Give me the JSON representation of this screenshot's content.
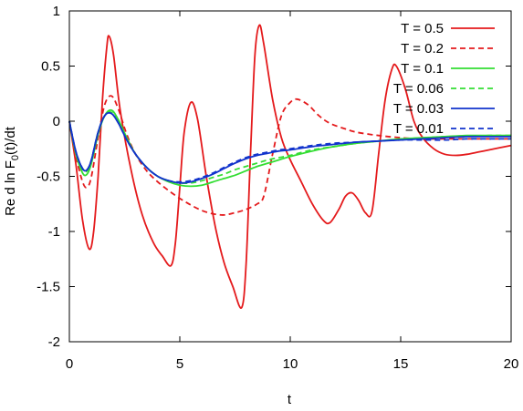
{
  "chart_data": {
    "type": "line",
    "xlabel": "t",
    "ylabel_main": "Re d ln F",
    "ylabel_sub": "0",
    "ylabel_tail": "(t)/dt",
    "xlim": [
      0,
      20
    ],
    "ylim": [
      -2,
      1
    ],
    "x_ticks": [
      0,
      5,
      10,
      15,
      20
    ],
    "x_tick_labels": [
      "0",
      "5",
      "10",
      "15",
      "20"
    ],
    "y_ticks": [
      1,
      0.5,
      0,
      -0.5,
      -1,
      -1.5,
      -2
    ],
    "y_tick_labels": [
      "1",
      "0.5",
      "0",
      "-0.5",
      "-1",
      "-1.5",
      "-2"
    ],
    "grid": false,
    "legend_position": "top-right",
    "series": [
      {
        "name": "T = 0.5",
        "color": "#e41a1c",
        "dash": "solid",
        "points": [
          [
            0,
            0
          ],
          [
            0.3,
            -0.4
          ],
          [
            0.6,
            -0.9
          ],
          [
            0.9,
            -1.16
          ],
          [
            1.1,
            -1.0
          ],
          [
            1.3,
            -0.5
          ],
          [
            1.5,
            0.2
          ],
          [
            1.7,
            0.68
          ],
          [
            1.8,
            0.77
          ],
          [
            2.0,
            0.6
          ],
          [
            2.3,
            0.1
          ],
          [
            2.8,
            -0.45
          ],
          [
            3.3,
            -0.85
          ],
          [
            3.8,
            -1.1
          ],
          [
            4.2,
            -1.22
          ],
          [
            4.6,
            -1.31
          ],
          [
            4.8,
            -1.1
          ],
          [
            5.0,
            -0.6
          ],
          [
            5.2,
            -0.1
          ],
          [
            5.5,
            0.17
          ],
          [
            5.8,
            0.02
          ],
          [
            6.2,
            -0.5
          ],
          [
            6.6,
            -0.95
          ],
          [
            7.0,
            -1.28
          ],
          [
            7.4,
            -1.5
          ],
          [
            7.8,
            -1.69
          ],
          [
            8.0,
            -1.3
          ],
          [
            8.2,
            -0.3
          ],
          [
            8.4,
            0.6
          ],
          [
            8.6,
            0.87
          ],
          [
            8.8,
            0.7
          ],
          [
            9.2,
            0.2
          ],
          [
            9.6,
            -0.15
          ],
          [
            10.0,
            -0.35
          ],
          [
            10.5,
            -0.55
          ],
          [
            11.0,
            -0.75
          ],
          [
            11.5,
            -0.9
          ],
          [
            11.8,
            -0.92
          ],
          [
            12.2,
            -0.8
          ],
          [
            12.5,
            -0.68
          ],
          [
            12.8,
            -0.65
          ],
          [
            13.1,
            -0.72
          ],
          [
            13.4,
            -0.83
          ],
          [
            13.7,
            -0.82
          ],
          [
            14.0,
            -0.3
          ],
          [
            14.3,
            0.2
          ],
          [
            14.6,
            0.47
          ],
          [
            14.8,
            0.5
          ],
          [
            15.2,
            0.3
          ],
          [
            15.6,
            0.0
          ],
          [
            16.0,
            -0.15
          ],
          [
            16.5,
            -0.25
          ],
          [
            17.0,
            -0.3
          ],
          [
            17.5,
            -0.31
          ],
          [
            18.0,
            -0.3
          ],
          [
            18.5,
            -0.28
          ],
          [
            19.0,
            -0.26
          ],
          [
            19.5,
            -0.24
          ],
          [
            20.0,
            -0.22
          ]
        ]
      },
      {
        "name": "T = 0.2",
        "color": "#e41a1c",
        "dash": "dashed",
        "points": [
          [
            0,
            0
          ],
          [
            0.3,
            -0.32
          ],
          [
            0.6,
            -0.55
          ],
          [
            0.8,
            -0.6
          ],
          [
            1.0,
            -0.5
          ],
          [
            1.3,
            -0.15
          ],
          [
            1.6,
            0.15
          ],
          [
            1.9,
            0.23
          ],
          [
            2.2,
            0.12
          ],
          [
            2.6,
            -0.12
          ],
          [
            3.0,
            -0.3
          ],
          [
            3.5,
            -0.45
          ],
          [
            4.0,
            -0.55
          ],
          [
            4.5,
            -0.63
          ],
          [
            5.0,
            -0.7
          ],
          [
            5.5,
            -0.76
          ],
          [
            6.0,
            -0.81
          ],
          [
            6.5,
            -0.84
          ],
          [
            7.0,
            -0.85
          ],
          [
            7.5,
            -0.83
          ],
          [
            8.0,
            -0.8
          ],
          [
            8.5,
            -0.75
          ],
          [
            8.8,
            -0.68
          ],
          [
            9.2,
            -0.3
          ],
          [
            9.6,
            0.05
          ],
          [
            10.0,
            0.17
          ],
          [
            10.3,
            0.2
          ],
          [
            10.8,
            0.15
          ],
          [
            11.3,
            0.05
          ],
          [
            11.8,
            -0.02
          ],
          [
            12.5,
            -0.07
          ],
          [
            13.0,
            -0.1
          ],
          [
            14.0,
            -0.13
          ],
          [
            15.0,
            -0.15
          ],
          [
            16.0,
            -0.16
          ],
          [
            17.0,
            -0.16
          ],
          [
            18.0,
            -0.16
          ],
          [
            19.0,
            -0.16
          ],
          [
            20.0,
            -0.16
          ]
        ]
      },
      {
        "name": "T = 0.1",
        "color": "#33dd33",
        "dash": "solid",
        "points": [
          [
            0,
            0
          ],
          [
            0.3,
            -0.3
          ],
          [
            0.6,
            -0.47
          ],
          [
            0.8,
            -0.48
          ],
          [
            1.0,
            -0.38
          ],
          [
            1.3,
            -0.12
          ],
          [
            1.6,
            0.05
          ],
          [
            1.9,
            0.1
          ],
          [
            2.2,
            0.02
          ],
          [
            2.6,
            -0.15
          ],
          [
            3.0,
            -0.3
          ],
          [
            3.5,
            -0.42
          ],
          [
            4.0,
            -0.5
          ],
          [
            4.5,
            -0.55
          ],
          [
            5.0,
            -0.58
          ],
          [
            5.5,
            -0.59
          ],
          [
            6.0,
            -0.58
          ],
          [
            6.5,
            -0.55
          ],
          [
            7.0,
            -0.52
          ],
          [
            7.5,
            -0.49
          ],
          [
            8.0,
            -0.45
          ],
          [
            8.5,
            -0.41
          ],
          [
            9.0,
            -0.38
          ],
          [
            9.5,
            -0.35
          ],
          [
            10.0,
            -0.32
          ],
          [
            11.0,
            -0.27
          ],
          [
            12.0,
            -0.23
          ],
          [
            13.0,
            -0.2
          ],
          [
            14.0,
            -0.18
          ],
          [
            15.0,
            -0.16
          ],
          [
            16.0,
            -0.15
          ],
          [
            17.0,
            -0.14
          ],
          [
            18.0,
            -0.13
          ],
          [
            19.0,
            -0.13
          ],
          [
            20.0,
            -0.13
          ]
        ]
      },
      {
        "name": "T = 0.06",
        "color": "#33dd33",
        "dash": "dashed",
        "points": [
          [
            0,
            0
          ],
          [
            0.3,
            -0.3
          ],
          [
            0.6,
            -0.44
          ],
          [
            0.8,
            -0.45
          ],
          [
            1.0,
            -0.35
          ],
          [
            1.3,
            -0.1
          ],
          [
            1.6,
            0.05
          ],
          [
            1.9,
            0.08
          ],
          [
            2.2,
            0.0
          ],
          [
            2.6,
            -0.16
          ],
          [
            3.0,
            -0.3
          ],
          [
            3.5,
            -0.42
          ],
          [
            4.0,
            -0.5
          ],
          [
            4.5,
            -0.54
          ],
          [
            5.0,
            -0.56
          ],
          [
            5.5,
            -0.56
          ],
          [
            6.0,
            -0.54
          ],
          [
            6.5,
            -0.51
          ],
          [
            7.0,
            -0.48
          ],
          [
            7.5,
            -0.44
          ],
          [
            8.0,
            -0.41
          ],
          [
            8.5,
            -0.38
          ],
          [
            9.0,
            -0.35
          ],
          [
            9.5,
            -0.33
          ],
          [
            10.0,
            -0.31
          ],
          [
            11.0,
            -0.26
          ],
          [
            12.0,
            -0.23
          ],
          [
            13.0,
            -0.2
          ],
          [
            14.0,
            -0.18
          ],
          [
            15.0,
            -0.16
          ],
          [
            16.0,
            -0.15
          ],
          [
            17.0,
            -0.14
          ],
          [
            18.0,
            -0.14
          ],
          [
            19.0,
            -0.13
          ],
          [
            20.0,
            -0.13
          ]
        ]
      },
      {
        "name": "T = 0.03",
        "color": "#1133cc",
        "dash": "solid",
        "points": [
          [
            0,
            0
          ],
          [
            0.3,
            -0.28
          ],
          [
            0.6,
            -0.43
          ],
          [
            0.8,
            -0.44
          ],
          [
            1.0,
            -0.35
          ],
          [
            1.3,
            -0.1
          ],
          [
            1.6,
            0.05
          ],
          [
            1.9,
            0.07
          ],
          [
            2.2,
            -0.01
          ],
          [
            2.6,
            -0.17
          ],
          [
            3.0,
            -0.3
          ],
          [
            3.5,
            -0.42
          ],
          [
            4.0,
            -0.5
          ],
          [
            4.5,
            -0.54
          ],
          [
            5.0,
            -0.56
          ],
          [
            5.5,
            -0.55
          ],
          [
            6.0,
            -0.52
          ],
          [
            6.5,
            -0.48
          ],
          [
            7.0,
            -0.43
          ],
          [
            7.5,
            -0.38
          ],
          [
            8.0,
            -0.34
          ],
          [
            8.5,
            -0.31
          ],
          [
            9.0,
            -0.29
          ],
          [
            9.5,
            -0.27
          ],
          [
            10.0,
            -0.26
          ],
          [
            11.0,
            -0.23
          ],
          [
            12.0,
            -0.21
          ],
          [
            13.0,
            -0.19
          ],
          [
            14.0,
            -0.18
          ],
          [
            15.0,
            -0.17
          ],
          [
            16.0,
            -0.16
          ],
          [
            17.0,
            -0.15
          ],
          [
            18.0,
            -0.14
          ],
          [
            19.0,
            -0.14
          ],
          [
            20.0,
            -0.14
          ]
        ]
      },
      {
        "name": "T = 0.01",
        "color": "#1133cc",
        "dash": "dashed",
        "points": [
          [
            0,
            0
          ],
          [
            0.3,
            -0.28
          ],
          [
            0.6,
            -0.43
          ],
          [
            0.8,
            -0.44
          ],
          [
            1.0,
            -0.35
          ],
          [
            1.3,
            -0.1
          ],
          [
            1.6,
            0.05
          ],
          [
            1.9,
            0.07
          ],
          [
            2.2,
            -0.01
          ],
          [
            2.6,
            -0.17
          ],
          [
            3.0,
            -0.3
          ],
          [
            3.5,
            -0.42
          ],
          [
            4.0,
            -0.5
          ],
          [
            4.5,
            -0.54
          ],
          [
            5.0,
            -0.55
          ],
          [
            5.5,
            -0.54
          ],
          [
            6.0,
            -0.51
          ],
          [
            6.5,
            -0.47
          ],
          [
            7.0,
            -0.42
          ],
          [
            7.5,
            -0.37
          ],
          [
            8.0,
            -0.33
          ],
          [
            8.5,
            -0.3
          ],
          [
            9.0,
            -0.28
          ],
          [
            9.5,
            -0.26
          ],
          [
            10.0,
            -0.25
          ],
          [
            11.0,
            -0.22
          ],
          [
            12.0,
            -0.2
          ],
          [
            13.0,
            -0.19
          ],
          [
            14.0,
            -0.18
          ],
          [
            15.0,
            -0.17
          ],
          [
            16.0,
            -0.17
          ],
          [
            17.0,
            -0.17
          ],
          [
            18.0,
            -0.16
          ],
          [
            19.0,
            -0.16
          ],
          [
            20.0,
            -0.16
          ]
        ]
      }
    ]
  }
}
